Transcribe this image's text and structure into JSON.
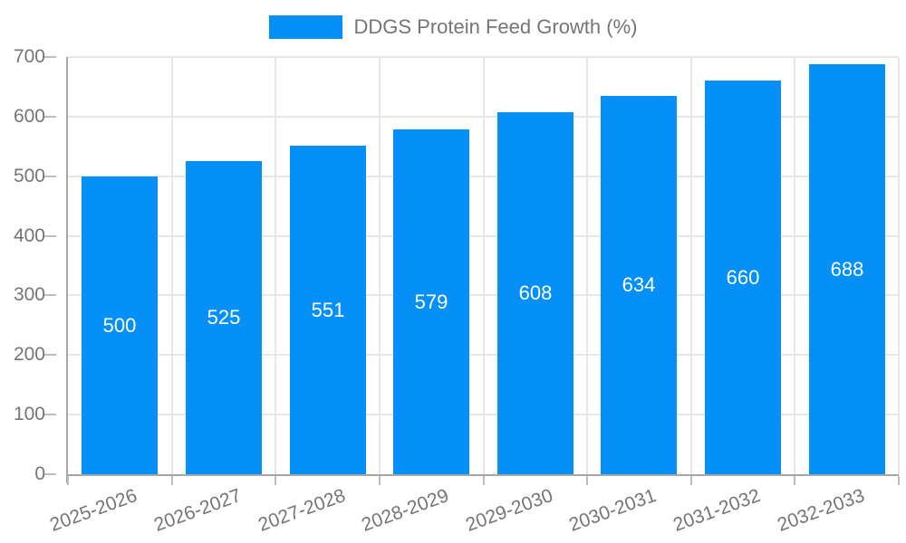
{
  "legend": {
    "items": [
      {
        "label": "DDGS Protein Feed Growth (%)",
        "swatch_color": "#0590F8"
      }
    ]
  },
  "colors": {
    "background": "#ffffff",
    "bar": "#0590F8",
    "bar_label_text": "#ffffff",
    "axis_text": "#757575",
    "legend_text": "#757575",
    "grid_line": "#e7e7e7",
    "axis_line": "#a6a6a6",
    "tick_mark": "#bdbdbd"
  },
  "chart_data": {
    "type": "bar",
    "title": "DDGS Protein Feed Growth (%)",
    "categories": [
      "2025-2026",
      "2026-2027",
      "2027-2028",
      "2028-2029",
      "2029-2030",
      "2030-2031",
      "2031-2032",
      "2032-2033"
    ],
    "values": [
      500,
      525,
      551,
      579,
      608,
      634,
      660,
      688
    ],
    "bar_value_labels": [
      "500",
      "525",
      "551",
      "579",
      "608",
      "634",
      "660",
      "688"
    ],
    "xlabel": "",
    "ylabel": "",
    "ylim": [
      0,
      700
    ],
    "yticks": [
      0,
      100,
      200,
      300,
      400,
      500,
      600,
      700
    ],
    "grid": true,
    "legend_position": "top-center",
    "x_tick_label_rotation_deg": -20,
    "value_label_position": "center-inside"
  }
}
